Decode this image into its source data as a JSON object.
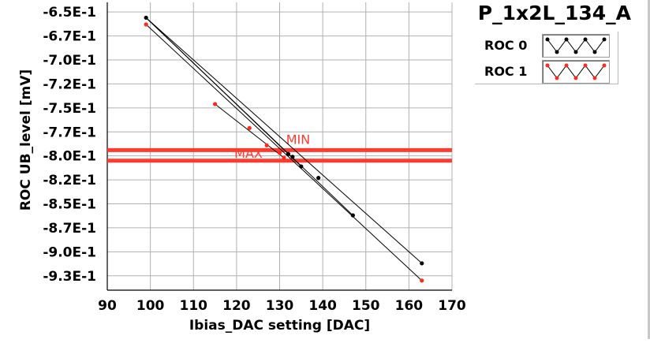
{
  "window_title": "P_1x2L_134_A",
  "legend": [
    {
      "label": "ROC 0",
      "color": "#000000"
    },
    {
      "label": "ROC 1",
      "color": "#ff2a1a"
    }
  ],
  "chart_data": {
    "type": "line",
    "title": "P_1x2L_134_A",
    "xlabel": "Ibias_DAC setting [DAC]",
    "ylabel": "ROC UB_level [mV]",
    "xlim": [
      90,
      170
    ],
    "ylim": [
      -0.94,
      -0.64
    ],
    "xticks": [
      90,
      100,
      110,
      120,
      130,
      140,
      150,
      160,
      170
    ],
    "xtick_labels": [
      "90",
      "100",
      "110",
      "120",
      "130",
      "140",
      "150",
      "160",
      "170"
    ],
    "yticks": [
      -0.65,
      -0.675,
      -0.7,
      -0.725,
      -0.75,
      -0.775,
      -0.8,
      -0.825,
      -0.85,
      -0.875,
      -0.9,
      -0.925
    ],
    "ytick_labels": [
      "-6.5E-1",
      "-6.7E-1",
      "-7.0E-1",
      "-7.2E-1",
      "-7.5E-1",
      "-7.7E-1",
      "-8.0E-1",
      "-8.2E-1",
      "-8.5E-1",
      "-8.7E-1",
      "-9.0E-1",
      "-9.3E-1"
    ],
    "grid": true,
    "legend_position": "top-right",
    "series": [
      {
        "name": "ROC 0",
        "color": "#000000",
        "points": [
          {
            "x": 99,
            "y": -0.656
          },
          {
            "x": 132,
            "y": -0.798
          },
          {
            "x": 133,
            "y": -0.801
          },
          {
            "x": 135,
            "y": -0.811
          },
          {
            "x": 139,
            "y": -0.823
          },
          {
            "x": 147,
            "y": -0.862
          },
          {
            "x": 163,
            "y": -0.912
          }
        ],
        "lines": [
          [
            {
              "x": 99,
              "y": -0.656
            },
            {
              "x": 163,
              "y": -0.912
            }
          ],
          [
            {
              "x": 99,
              "y": -0.656
            },
            {
              "x": 135,
              "y": -0.811
            }
          ],
          [
            {
              "x": 99,
              "y": -0.656
            },
            {
              "x": 147,
              "y": -0.862
            }
          ]
        ]
      },
      {
        "name": "ROC 1",
        "color": "#ff2a1a",
        "points": [
          {
            "x": 99,
            "y": -0.663
          },
          {
            "x": 115,
            "y": -0.746
          },
          {
            "x": 123,
            "y": -0.771
          },
          {
            "x": 127,
            "y": -0.789
          },
          {
            "x": 130,
            "y": -0.797
          },
          {
            "x": 131,
            "y": -0.802
          },
          {
            "x": 163,
            "y": -0.93
          }
        ],
        "lines": [
          [
            {
              "x": 99,
              "y": -0.663
            },
            {
              "x": 163,
              "y": -0.93
            }
          ],
          [
            {
              "x": 115,
              "y": -0.746
            },
            {
              "x": 131,
              "y": -0.802
            }
          ]
        ]
      }
    ],
    "reference_lines": [
      {
        "label": "MIN",
        "y": -0.794,
        "color": "#ff3b2f"
      },
      {
        "label": "MAX",
        "y": -0.805,
        "color": "#ff3b2f"
      }
    ]
  }
}
